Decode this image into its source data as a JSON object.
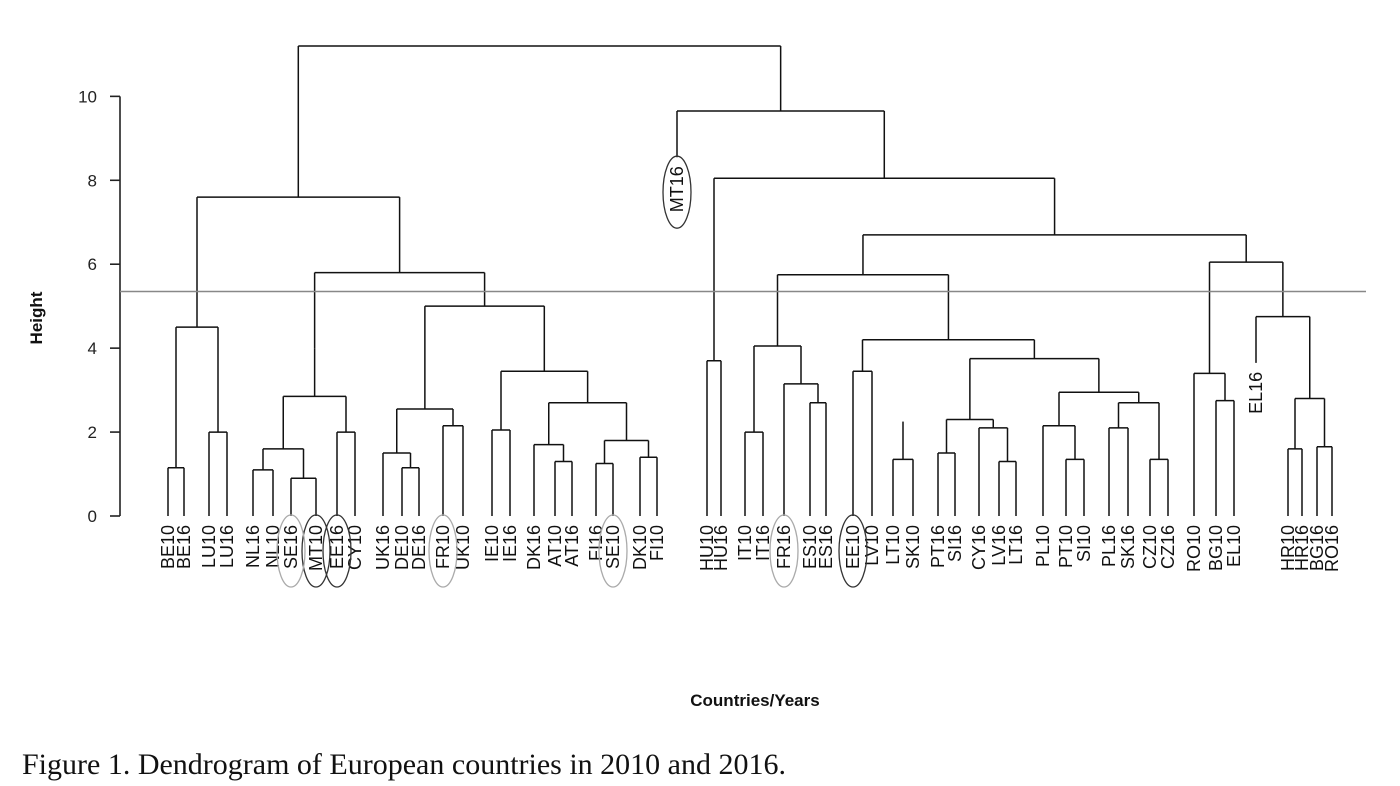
{
  "caption": "Figure 1. Dendrogram of European countries in 2010 and 2016.",
  "chart_data": {
    "type": "dendrogram",
    "title": "",
    "xlabel": "Countries/Years",
    "ylabel": "Height",
    "ylim": [
      0,
      11.2
    ],
    "y_ticks": [
      0,
      2,
      4,
      6,
      8,
      10
    ],
    "cut_height": 5.35,
    "leaves": [
      "BE10",
      "BE16",
      "LU10",
      "LU16",
      "NL16",
      "NL10",
      "SE16",
      "MT10",
      "EE16",
      "CY10",
      "UK16",
      "DE10",
      "DE16",
      "FR10",
      "UK10",
      "IE10",
      "IE16",
      "DK16",
      "AT10",
      "AT16",
      "FI16",
      "SE10",
      "DK10",
      "FI10",
      "MT16",
      "HU10",
      "HU16",
      "IT10",
      "IT16",
      "FR16",
      "ES10",
      "ES16",
      "EE10",
      "LV10",
      "LT10",
      "SK10",
      "PT16",
      "SI16",
      "CY16",
      "LV16",
      "LT16",
      "PL10",
      "PT10",
      "SI10",
      "PL16",
      "SK16",
      "CZ10",
      "CZ16",
      "RO10",
      "BG10",
      "EL10",
      "EL16",
      "HR10",
      "HR16",
      "BG16",
      "RO16"
    ],
    "leaf_heights": {
      "MT16": 8.55,
      "EL16": 3.65
    },
    "merges": [
      {
        "id": "a1",
        "children": [
          "BE10",
          "BE16"
        ],
        "height": 1.15
      },
      {
        "id": "a2",
        "children": [
          "LU10",
          "LU16"
        ],
        "height": 2.0
      },
      {
        "id": "a3",
        "children": [
          "a1",
          "a2"
        ],
        "height": 4.5
      },
      {
        "id": "b1",
        "children": [
          "SE16",
          "MT10"
        ],
        "height": 0.9
      },
      {
        "id": "b2",
        "children": [
          "NL16",
          "NL10"
        ],
        "height": 1.1
      },
      {
        "id": "b3",
        "children": [
          "b2",
          "b1"
        ],
        "height": 1.6
      },
      {
        "id": "b4",
        "children": [
          "EE16",
          "CY10"
        ],
        "height": 2.0
      },
      {
        "id": "b5",
        "children": [
          "b3",
          "b4"
        ],
        "height": 2.85
      },
      {
        "id": "b6",
        "children": [
          "b5"
        ],
        "height": 4.0
      },
      {
        "id": "c1",
        "children": [
          "DE10",
          "DE16"
        ],
        "height": 1.15
      },
      {
        "id": "c2",
        "children": [
          "UK16",
          "c1"
        ],
        "height": 1.5
      },
      {
        "id": "c3",
        "children": [
          "FR10",
          "UK10"
        ],
        "height": 2.15
      },
      {
        "id": "c4",
        "children": [
          "c2",
          "c3"
        ],
        "height": 2.55
      },
      {
        "id": "d1",
        "children": [
          "IE10",
          "IE16"
        ],
        "height": 2.05
      },
      {
        "id": "d2",
        "children": [
          "AT10",
          "AT16"
        ],
        "height": 1.3
      },
      {
        "id": "d3",
        "children": [
          "DK16",
          "d2"
        ],
        "height": 1.7
      },
      {
        "id": "d4",
        "children": [
          "FI16",
          "SE10"
        ],
        "height": 1.25
      },
      {
        "id": "d5",
        "children": [
          "DK10",
          "FI10"
        ],
        "height": 1.4
      },
      {
        "id": "d6",
        "children": [
          "d4",
          "d5"
        ],
        "height": 1.8
      },
      {
        "id": "d7",
        "children": [
          "d3",
          "d6"
        ],
        "height": 2.7
      },
      {
        "id": "d8",
        "children": [
          "d1",
          "d7"
        ],
        "height": 3.45
      },
      {
        "id": "e1",
        "children": [
          "c4",
          "d8"
        ],
        "height": 5.0
      },
      {
        "id": "e2",
        "children": [
          "b6",
          "e1"
        ],
        "height": 5.8
      },
      {
        "id": "e3",
        "children": [
          "a3",
          "e2"
        ],
        "height": 7.6
      },
      {
        "id": "f1",
        "children": [
          "HU10",
          "HU16"
        ],
        "height": 3.7
      },
      {
        "id": "g1",
        "children": [
          "IT10",
          "IT16"
        ],
        "height": 2.0
      },
      {
        "id": "g2",
        "children": [
          "ES10",
          "ES16"
        ],
        "height": 2.7
      },
      {
        "id": "g3",
        "children": [
          "FR16",
          "g2"
        ],
        "height": 3.15
      },
      {
        "id": "g4",
        "children": [
          "g1",
          "g3"
        ],
        "height": 4.05
      },
      {
        "id": "h1",
        "children": [
          "LT10",
          "SK10"
        ],
        "height": 1.35
      },
      {
        "id": "h2",
        "children": [
          "h1"
        ],
        "height": 2.25
      },
      {
        "id": "h3",
        "children": [
          "EE10",
          "LV10"
        ],
        "height": 3.45
      },
      {
        "id": "h4",
        "children": [
          "PT16",
          "SI16"
        ],
        "height": 1.5
      },
      {
        "id": "h5",
        "children": [
          "LV16",
          "LT16"
        ],
        "height": 1.3
      },
      {
        "id": "h6",
        "children": [
          "CY16",
          "h5"
        ],
        "height": 2.1
      },
      {
        "id": "h7",
        "children": [
          "h4",
          "h6"
        ],
        "height": 2.3
      },
      {
        "id": "h8",
        "children": [
          "PT10",
          "SI10"
        ],
        "height": 1.35
      },
      {
        "id": "h9",
        "children": [
          "PL10",
          "h8"
        ],
        "height": 2.15
      },
      {
        "id": "h10",
        "children": [
          "CZ10",
          "CZ16"
        ],
        "height": 1.35
      },
      {
        "id": "h11",
        "children": [
          "PL16",
          "SK16"
        ],
        "height": 2.1
      },
      {
        "id": "h12",
        "children": [
          "h11",
          "h10"
        ],
        "height": 2.7
      },
      {
        "id": "h13",
        "children": [
          "h9",
          "h12"
        ],
        "height": 2.95
      },
      {
        "id": "h14",
        "children": [
          "h7",
          "h13"
        ],
        "height": 3.75
      },
      {
        "id": "h15",
        "children": [
          "h3",
          "h14"
        ],
        "height": 4.2
      },
      {
        "id": "g5",
        "children": [
          "g4",
          "h15"
        ],
        "height": 5.75
      },
      {
        "id": "i1",
        "children": [
          "BG10",
          "EL10"
        ],
        "height": 2.75
      },
      {
        "id": "i2",
        "children": [
          "RO10",
          "i1"
        ],
        "height": 3.4
      },
      {
        "id": "i3",
        "children": [
          "HR10",
          "HR16"
        ],
        "height": 1.6
      },
      {
        "id": "i4",
        "children": [
          "BG16",
          "RO16"
        ],
        "height": 1.65
      },
      {
        "id": "i5",
        "children": [
          "i3",
          "i4"
        ],
        "height": 2.8
      },
      {
        "id": "i6",
        "children": [
          "EL16",
          "i5"
        ],
        "height": 4.75
      },
      {
        "id": "i7",
        "children": [
          "i2",
          "i6"
        ],
        "height": 6.05
      },
      {
        "id": "j1",
        "children": [
          "g5",
          "i7"
        ],
        "height": 6.7
      },
      {
        "id": "j2",
        "children": [
          "f1",
          "j1"
        ],
        "height": 8.05
      },
      {
        "id": "j3",
        "children": [
          "MT16",
          "j2"
        ],
        "height": 9.65
      },
      {
        "id": "root",
        "children": [
          "e3",
          "j3"
        ],
        "height": 11.2
      }
    ],
    "highlighted_leaves": {
      "dark": [
        "MT10",
        "EE16",
        "MT16",
        "EE10"
      ],
      "light": [
        "SE16",
        "FR10",
        "SE10",
        "FR16"
      ]
    },
    "grid": false,
    "legend": "none"
  }
}
